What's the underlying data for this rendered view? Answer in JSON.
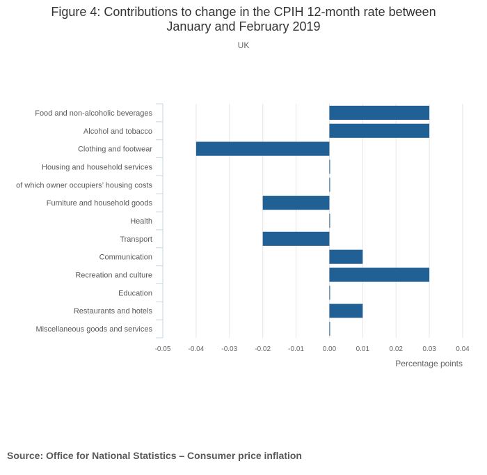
{
  "figure": {
    "title_line1": "Figure 4: Contributions to change in the CPIH 12-month rate between",
    "title_line2": "January and February 2019",
    "subtitle": "UK",
    "source": "Source: Office for National Statistics – Consumer price inflation"
  },
  "chart_data": {
    "type": "bar",
    "orientation": "horizontal",
    "title": "Figure 4: Contributions to change in the CPIH 12-month rate between January and February 2019",
    "subtitle": "UK",
    "categories": [
      "Food and non-alcoholic beverages",
      "Alcohol and tobacco",
      "Clothing and footwear",
      "Housing and household services",
      "of which owner occupiers’ housing costs",
      "Furniture and household goods",
      "Health",
      "Transport",
      "Communication",
      "Recreation and culture",
      "Education",
      "Restaurants and hotels",
      "Miscellaneous goods and services"
    ],
    "values": [
      0.03,
      0.03,
      -0.04,
      0,
      0,
      -0.02,
      0,
      -0.02,
      0.01,
      0.03,
      0,
      0.01,
      0
    ],
    "xlabel": "Percentage points",
    "ylabel": "",
    "xlim": [
      -0.05,
      0.04
    ],
    "xticks": [
      "-0.05",
      "-0.04",
      "-0.03",
      "-0.02",
      "-0.01",
      "0.00",
      "0.01",
      "0.02",
      "0.03",
      "0.04"
    ],
    "grid": true,
    "legend": "none",
    "bar_color": "#206095"
  }
}
